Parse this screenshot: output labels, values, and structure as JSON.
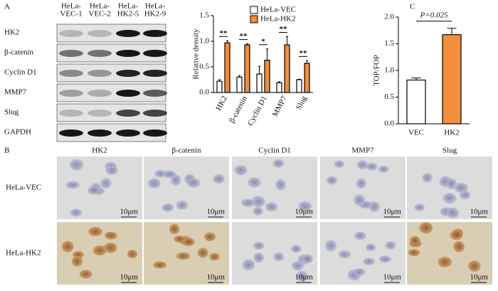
{
  "panel_labels": [
    "A",
    "B",
    "C"
  ],
  "blot": {
    "lanes": [
      [
        "HeLa-",
        "VEC-1"
      ],
      [
        "HeLa-",
        "VEC-2"
      ],
      [
        "HeLa-",
        "HK2-5"
      ],
      [
        "HeLa-",
        "HK2-9"
      ]
    ],
    "proteins": [
      "HK2",
      "β-catenin",
      "Cyclin D1",
      "MMP7",
      "Slug",
      "GAPDH"
    ]
  },
  "ihc": {
    "columns": [
      "HK2",
      "β-catenin",
      "Cyclin D1",
      "MMP7",
      "Slug"
    ],
    "rows": [
      "HeLa-VEC",
      "HeLa-HK2"
    ],
    "scale_bars": [
      [
        "10μm",
        "10μm",
        "10μm",
        "10μm",
        "10μm"
      ],
      [
        "10μm",
        "10μm",
        "10μm",
        "10μm",
        "10μm"
      ]
    ]
  },
  "chart_data": [
    {
      "type": "bar",
      "y_label": "Relative density",
      "categories": [
        "HK2",
        "β-catenin",
        "Cyclin D1",
        "MMP7",
        "Slug"
      ],
      "series": [
        {
          "name": "HeLa-VEC",
          "color": "#ffffff",
          "values": [
            0.22,
            0.3,
            0.36,
            0.19,
            0.25
          ],
          "errors": [
            0.03,
            0.03,
            0.15,
            0.02,
            0.01
          ]
        },
        {
          "name": "HeLa-HK2",
          "color": "#f28e3c",
          "values": [
            0.97,
            0.93,
            0.63,
            0.93,
            0.57
          ],
          "errors": [
            0.04,
            0.02,
            0.22,
            0.16,
            0.05
          ]
        }
      ],
      "significance": [
        "**",
        "**",
        "*",
        "**",
        "**"
      ],
      "ylim": [
        0,
        1.5
      ],
      "yticks": [
        {
          "value": 0,
          "label": "0.0"
        },
        0.5,
        {
          "value": 1,
          "label": "1.0"
        },
        1.5
      ],
      "legend": "top-right"
    },
    {
      "type": "bar",
      "y_label": "TOP/FOP",
      "categories": [
        "VEC",
        "HK2"
      ],
      "values": [
        0.82,
        1.67
      ],
      "errors": [
        0.04,
        0.12
      ],
      "colors": [
        "#ffffff",
        "#f28e3c"
      ],
      "annotation": "P=0.025",
      "ylim": [
        0,
        2
      ],
      "yticks": [
        {
          "value": 0,
          "label": "0.0"
        },
        0.5,
        {
          "value": 1,
          "label": "1.0"
        },
        1.5,
        {
          "value": 2,
          "label": "2.0"
        }
      ]
    }
  ]
}
